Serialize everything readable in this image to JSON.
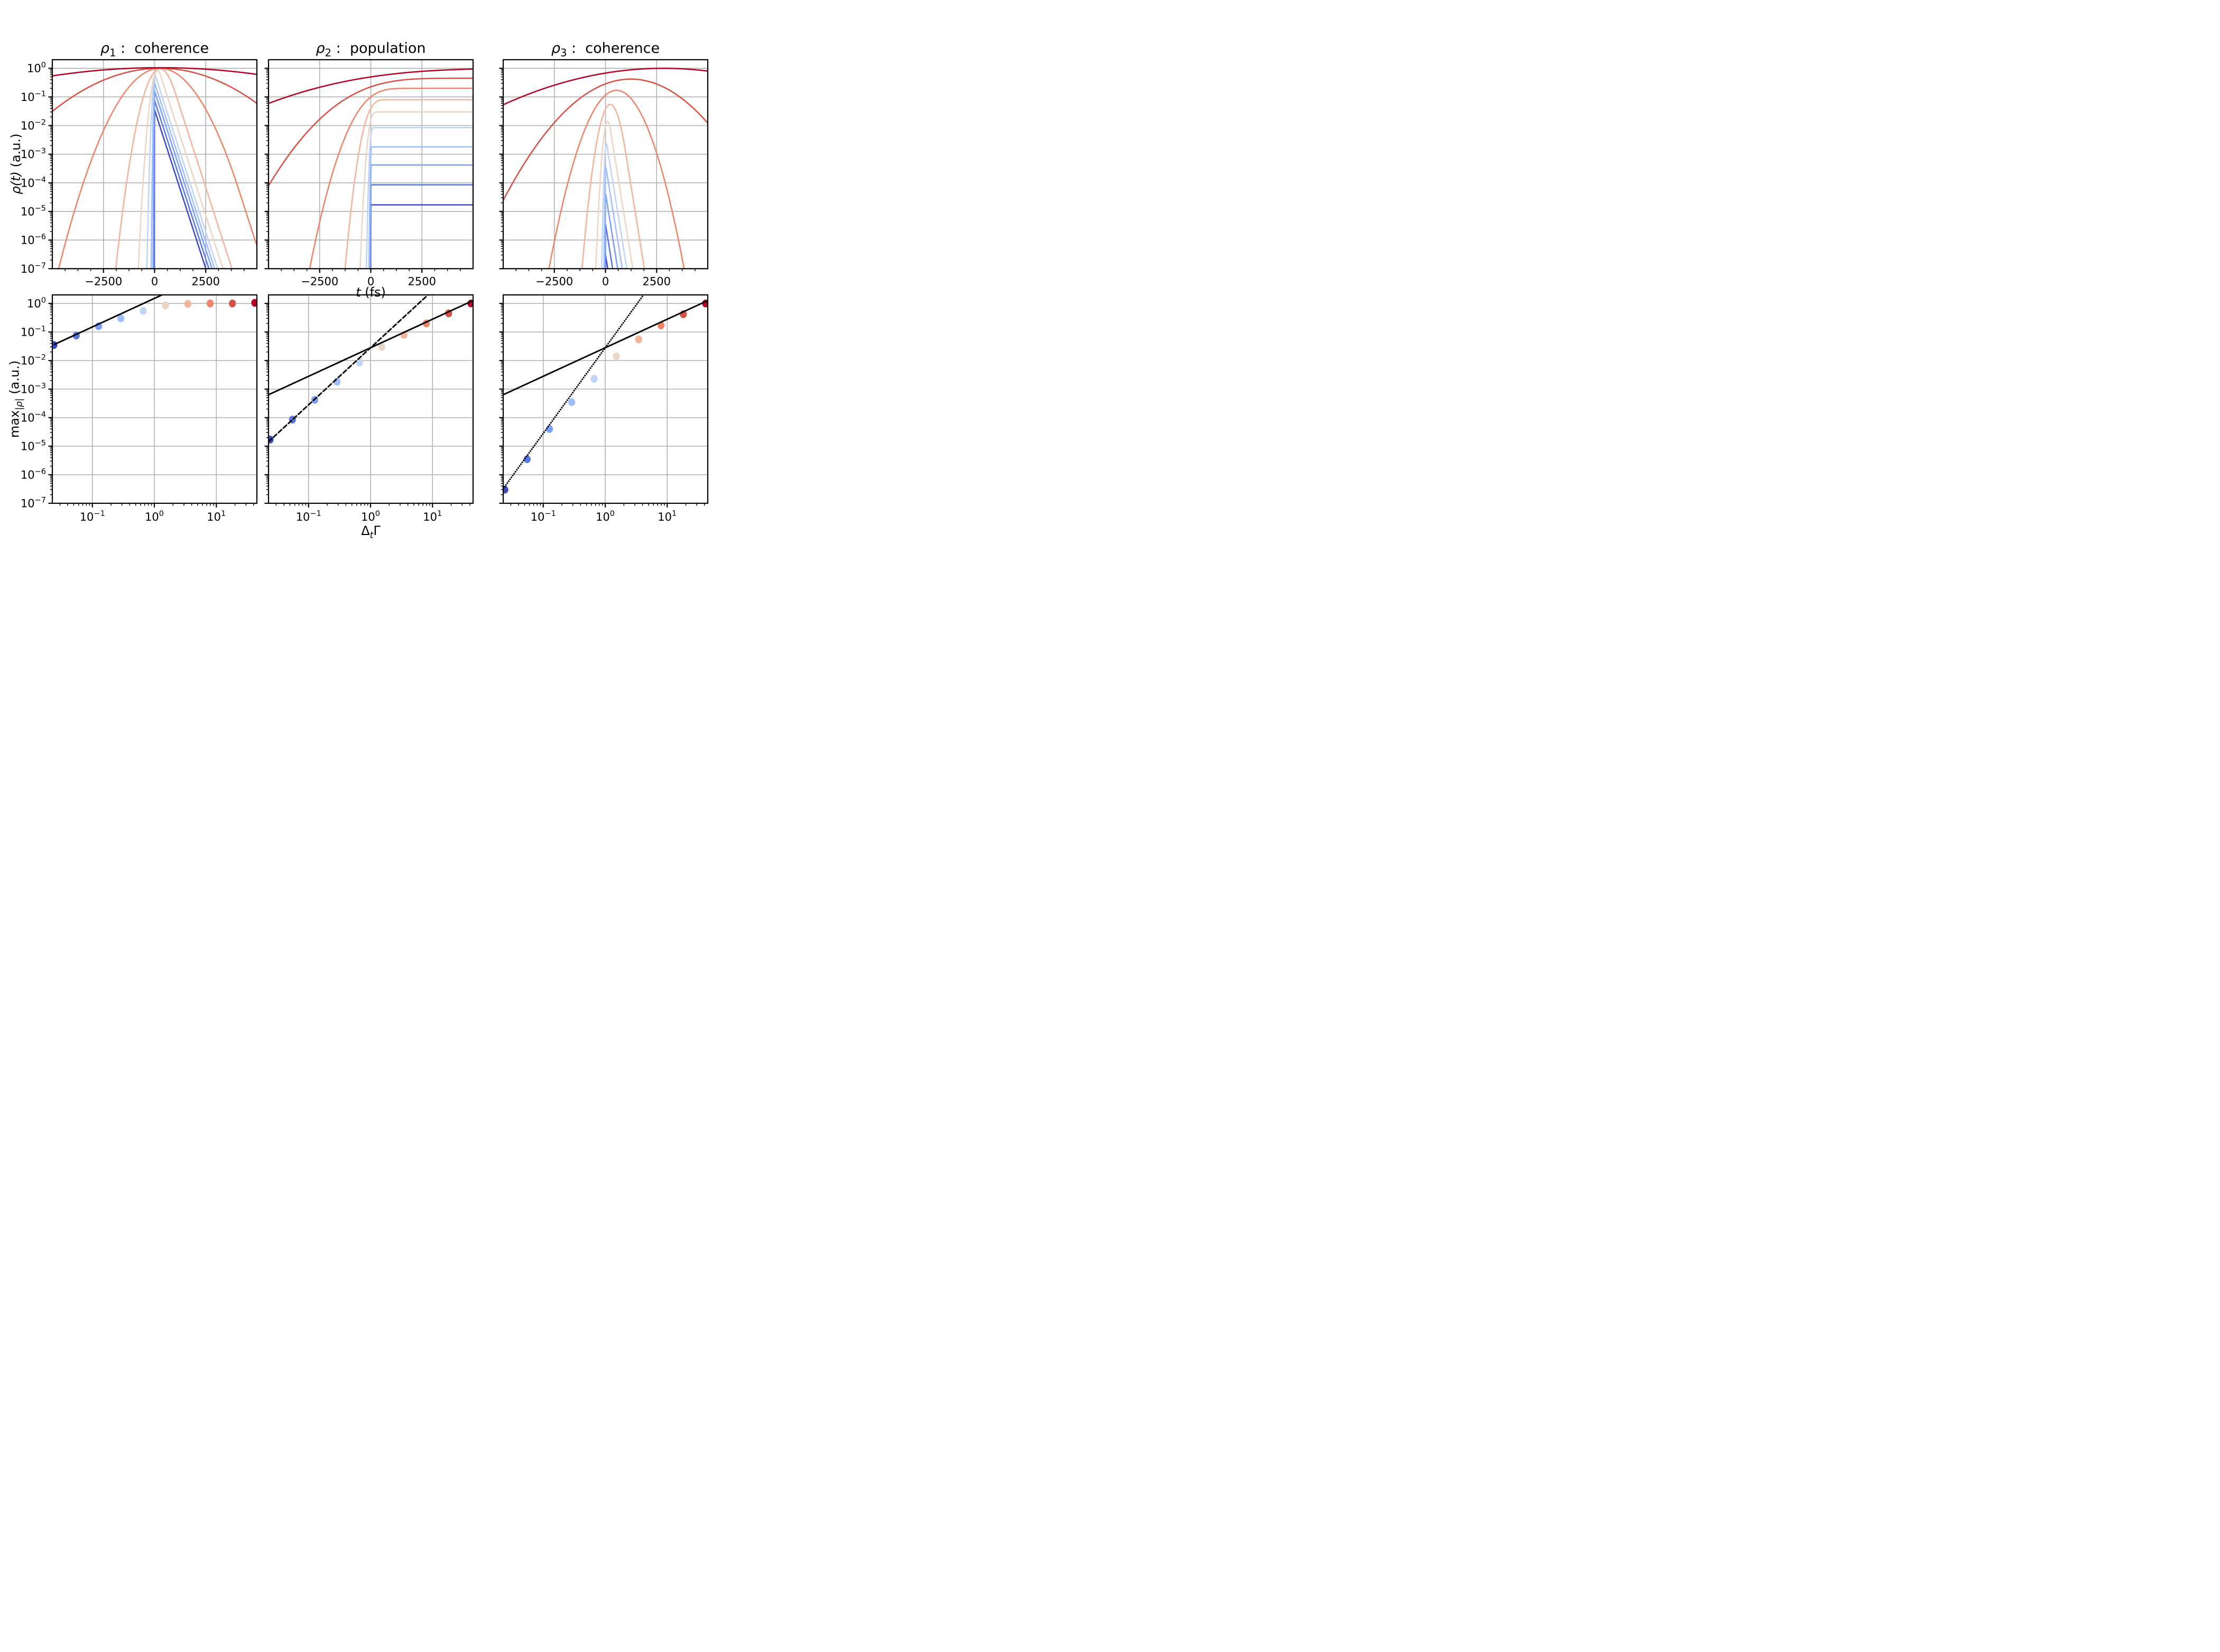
{
  "figure": {
    "background": "#ffffff",
    "colors": {
      "coolwarm": [
        "#3B4CC0",
        "#5977E3",
        "#7B9FF9",
        "#9EBEFF",
        "#C0D4F5",
        "#EBD5C4",
        "#F4B49B",
        "#EE8468",
        "#D65244",
        "#B40426"
      ],
      "grid": "#b0b0b0",
      "spine": "#000000",
      "fit_line": "#000000"
    },
    "top_row": {
      "ylabel_math": "ρ(t)",
      "ylabel_unit": " (a.u.)",
      "xlabel_math": "t",
      "xlabel_unit": " (fs)",
      "x_tick_values": [
        -2500,
        0,
        2500
      ],
      "x_tick_labels": [
        "−2500",
        "0",
        "2500"
      ],
      "x_minor_step": 625,
      "y_tick_exponents": [
        0,
        -1,
        -2,
        -3,
        -4,
        -5,
        -6,
        -7
      ],
      "xlim_fs": [
        -5000,
        5000
      ],
      "ylim": [
        1e-07,
        2.0
      ],
      "grid": "on"
    },
    "bottom_row": {
      "ylabel_prefix": "max",
      "ylabel_sub": "|ρ|",
      "ylabel_unit": " (a.u.)",
      "xlabel_delta": "Δ",
      "xlabel_sub": "t",
      "xlabel_gamma": "Γ",
      "x_tick_exponents": [
        -1,
        0,
        1
      ],
      "y_tick_exponents": [
        0,
        -1,
        -2,
        -3,
        -4,
        -5,
        -6,
        -7
      ],
      "xlim": [
        0.0226,
        45.1
      ],
      "ylim": [
        1e-07,
        2.0
      ],
      "grid": "on"
    }
  },
  "chart_data": [
    {
      "panel": "top-left",
      "type": "line",
      "title_sym": "ρ",
      "title_sub": "1",
      "title_rest": " :  coherence",
      "model": "gaussian-rise-exponential-decay",
      "gamma_per_fs": 0.0051,
      "width_factor": 0.56,
      "peak_time_cap_fs": 260,
      "xlim_fs": [
        -5000,
        5000
      ],
      "ylim": [
        1e-07,
        2.0
      ],
      "series": [
        {
          "delta_t_gamma": 0.024,
          "peak": 0.035
        },
        {
          "delta_t_gamma": 0.055,
          "peak": 0.075
        },
        {
          "delta_t_gamma": 0.126,
          "peak": 0.16
        },
        {
          "delta_t_gamma": 0.288,
          "peak": 0.3
        },
        {
          "delta_t_gamma": 0.661,
          "peak": 0.55
        },
        {
          "delta_t_gamma": 1.514,
          "peak": 0.85
        },
        {
          "delta_t_gamma": 3.467,
          "peak": 0.96
        },
        {
          "delta_t_gamma": 7.943,
          "peak": 1.0
        },
        {
          "delta_t_gamma": 18.197,
          "peak": 1.0
        },
        {
          "delta_t_gamma": 41.687,
          "peak": 1.05
        }
      ]
    },
    {
      "panel": "top-middle",
      "type": "line",
      "title_sym": "ρ",
      "title_sub": "2",
      "title_rest": " :  population",
      "model": "erf-rise-to-plateau",
      "gamma_per_fs": 0.0051,
      "width_factor": 0.56,
      "rise_width_factor": 0.7,
      "xlim_fs": [
        -5000,
        5000
      ],
      "ylim": [
        1e-07,
        2.0
      ],
      "series": [
        {
          "delta_t_gamma": 0.024,
          "plateau": 1.7e-05
        },
        {
          "delta_t_gamma": 0.055,
          "plateau": 8.5e-05
        },
        {
          "delta_t_gamma": 0.126,
          "plateau": 0.00042
        },
        {
          "delta_t_gamma": 0.288,
          "plateau": 0.0018
        },
        {
          "delta_t_gamma": 0.661,
          "plateau": 0.0085
        },
        {
          "delta_t_gamma": 1.514,
          "plateau": 0.03
        },
        {
          "delta_t_gamma": 3.467,
          "plateau": 0.08
        },
        {
          "delta_t_gamma": 7.943,
          "plateau": 0.2
        },
        {
          "delta_t_gamma": 18.197,
          "plateau": 0.45
        },
        {
          "delta_t_gamma": 41.687,
          "plateau": 1.0
        }
      ]
    },
    {
      "panel": "top-right",
      "type": "line",
      "title_sym": "ρ",
      "title_sub": "3",
      "title_rest": " :  coherence",
      "model": "delayed-gaussian-rise-exponential-decay",
      "gamma_per_fs": 0.0051,
      "width_factor": 0.56,
      "peak_time_factor": 0.62,
      "xlim_fs": [
        -5000,
        5000
      ],
      "ylim": [
        1e-07,
        2.0
      ],
      "series": [
        {
          "delta_t_gamma": 0.024,
          "peak": 3e-07
        },
        {
          "delta_t_gamma": 0.055,
          "peak": 3.5e-06
        },
        {
          "delta_t_gamma": 0.126,
          "peak": 4e-05
        },
        {
          "delta_t_gamma": 0.288,
          "peak": 0.00035
        },
        {
          "delta_t_gamma": 0.661,
          "peak": 0.0023
        },
        {
          "delta_t_gamma": 1.514,
          "peak": 0.014
        },
        {
          "delta_t_gamma": 3.467,
          "peak": 0.055
        },
        {
          "delta_t_gamma": 7.943,
          "peak": 0.17
        },
        {
          "delta_t_gamma": 18.197,
          "peak": 0.42
        },
        {
          "delta_t_gamma": 41.687,
          "peak": 1.0
        }
      ]
    },
    {
      "panel": "bottom-left",
      "type": "scatter",
      "x": [
        0.024,
        0.055,
        0.126,
        0.288,
        0.661,
        1.514,
        3.467,
        7.943,
        18.197,
        41.687
      ],
      "y": [
        0.035,
        0.075,
        0.16,
        0.3,
        0.55,
        0.85,
        0.96,
        1.0,
        1.0,
        1.05
      ],
      "xlim": [
        0.0226,
        45.1
      ],
      "ylim": [
        1e-07,
        2.0
      ],
      "fit_lines": [
        {
          "style": "solid",
          "coeff": 1.5,
          "power": 1,
          "x_start": 0.024
        }
      ]
    },
    {
      "panel": "bottom-middle",
      "type": "scatter",
      "x": [
        0.024,
        0.055,
        0.126,
        0.288,
        0.661,
        1.514,
        3.467,
        7.943,
        18.197,
        41.687
      ],
      "y": [
        1.7e-05,
        8.5e-05,
        0.00042,
        0.0018,
        0.0085,
        0.03,
        0.08,
        0.2,
        0.45,
        1.0
      ],
      "xlim": [
        0.0226,
        45.1
      ],
      "ylim": [
        1e-07,
        2.0
      ],
      "fit_lines": [
        {
          "style": "solid",
          "coeff": 0.028,
          "power": 1
        },
        {
          "style": "dashed",
          "coeff": 0.028,
          "power": 2
        }
      ]
    },
    {
      "panel": "bottom-right",
      "type": "scatter",
      "x": [
        0.024,
        0.055,
        0.126,
        0.288,
        0.661,
        1.514,
        3.467,
        7.943,
        18.197,
        41.687
      ],
      "y": [
        3e-07,
        3.5e-06,
        4e-05,
        0.00035,
        0.0023,
        0.014,
        0.055,
        0.17,
        0.42,
        1.0
      ],
      "xlim": [
        0.0226,
        45.1
      ],
      "ylim": [
        1e-07,
        2.0
      ],
      "fit_lines": [
        {
          "style": "solid",
          "coeff": 0.028,
          "power": 1
        },
        {
          "style": "dotted",
          "coeff": 0.028,
          "power": 3
        }
      ]
    }
  ]
}
